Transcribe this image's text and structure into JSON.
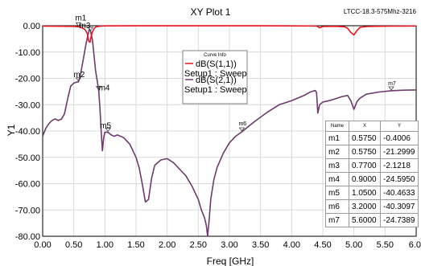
{
  "chart_data": {
    "type": "line",
    "title": "XY Plot 1",
    "subtitle": "LTCC-18.3-575Mhz-3216",
    "xlabel": "Freq [GHz]",
    "ylabel": "Y1",
    "xlim": [
      0,
      6
    ],
    "ylim": [
      -80,
      0
    ],
    "xticks": [
      "0.00",
      "0.50",
      "1.00",
      "1.50",
      "2.00",
      "2.50",
      "3.00",
      "3.50",
      "4.00",
      "4.50",
      "5.00",
      "5.50",
      "6.0"
    ],
    "yticks": [
      "0.00",
      "-10.00",
      "-20.00",
      "-30.00",
      "-40.00",
      "-50.00",
      "-60.00",
      "-70.00",
      "-80.00"
    ],
    "legend": {
      "header": "Curve Info",
      "placement": "top-center",
      "entries": [
        {
          "line1": "dB(S(1,1))",
          "line2": "Setup1 : Sweep",
          "color": "#e8131c"
        },
        {
          "line1": "dB(S(2,1))",
          "line2": "Setup1 : Sweep",
          "color": "#6e3a6e"
        }
      ]
    },
    "series": [
      {
        "key": "s21",
        "color": "#6e3a6e",
        "x": [
          0.0,
          0.05,
          0.1,
          0.15,
          0.2,
          0.25,
          0.3,
          0.35,
          0.4,
          0.45,
          0.5,
          0.55,
          0.575,
          0.6,
          0.65,
          0.7,
          0.75,
          0.77,
          0.8,
          0.85,
          0.88,
          0.9,
          0.92,
          0.94,
          0.96,
          0.98,
          1.0,
          1.05,
          1.1,
          1.15,
          1.2,
          1.3,
          1.4,
          1.5,
          1.55,
          1.6,
          1.65,
          1.7,
          1.75,
          1.8,
          1.9,
          2.0,
          2.1,
          2.2,
          2.3,
          2.4,
          2.5,
          2.55,
          2.6,
          2.63,
          2.65,
          2.67,
          2.7,
          2.75,
          2.8,
          2.9,
          3.0,
          3.1,
          3.2,
          3.4,
          3.6,
          3.8,
          4.0,
          4.2,
          4.3,
          4.35,
          4.38,
          4.4,
          4.42,
          4.45,
          4.5,
          4.6,
          4.7,
          4.8,
          4.9,
          4.95,
          5.0,
          5.05,
          5.1,
          5.2,
          5.4,
          5.6,
          5.8,
          6.0
        ],
        "y": [
          -42.0,
          -39.0,
          -37.2,
          -36.0,
          -35.4,
          -36.0,
          -35.5,
          -33.5,
          -28.0,
          -23.0,
          -21.8,
          -21.4,
          -21.3,
          -19.5,
          -13.0,
          -6.5,
          -1.3,
          -2.1,
          -5.5,
          -17.0,
          -21.5,
          -24.6,
          -31.0,
          -40.0,
          -47.5,
          -42.5,
          -40.5,
          -40.5,
          -41.5,
          -42.0,
          -41.5,
          -42.5,
          -45.0,
          -50.0,
          -54.0,
          -60.0,
          -67.0,
          -66.0,
          -58.0,
          -53.0,
          -51.0,
          -50.5,
          -52.0,
          -54.5,
          -57.0,
          -61.0,
          -66.0,
          -70.0,
          -73.0,
          -76.0,
          -80.0,
          -75.0,
          -66.0,
          -58.5,
          -54.0,
          -48.5,
          -44.5,
          -42.0,
          -40.3,
          -36.5,
          -33.0,
          -30.0,
          -28.5,
          -26.5,
          -25.2,
          -24.8,
          -24.6,
          -25.5,
          -33.2,
          -30.0,
          -29.0,
          -28.5,
          -27.8,
          -27.0,
          -26.5,
          -28.5,
          -31.8,
          -28.8,
          -27.5,
          -26.0,
          -25.2,
          -24.7,
          -24.5,
          -24.4
        ]
      },
      {
        "key": "s11",
        "color": "#e8131c",
        "x": [
          0.0,
          0.5,
          0.575,
          0.62,
          0.65,
          0.68,
          0.7,
          0.72,
          0.74,
          0.76,
          0.78,
          0.8,
          0.83,
          0.86,
          0.9,
          0.95,
          1.0,
          1.5,
          2.0,
          2.5,
          3.0,
          3.5,
          4.0,
          4.4,
          4.45,
          4.5,
          4.7,
          4.85,
          4.9,
          4.95,
          5.0,
          5.05,
          5.1,
          5.2,
          5.4,
          5.6,
          5.8,
          6.0
        ],
        "y": [
          -0.15,
          -0.25,
          -0.4,
          -0.7,
          -1.0,
          -1.5,
          -2.2,
          -3.2,
          -5.8,
          -6.3,
          -4.0,
          -2.3,
          -1.0,
          -0.4,
          -0.2,
          -0.1,
          -0.05,
          -0.03,
          -0.03,
          -0.03,
          -0.03,
          -0.04,
          -0.06,
          -0.1,
          -0.8,
          -0.3,
          -0.2,
          -0.4,
          -1.0,
          -2.5,
          -3.5,
          -1.8,
          -0.6,
          -0.3,
          -0.2,
          -0.15,
          -0.12,
          -0.1
        ]
      }
    ],
    "markers": [
      {
        "name": "m1",
        "x": 0.575,
        "y": -0.4006,
        "label_dx": -4,
        "label_dy": -8
      },
      {
        "name": "m2",
        "x": 0.575,
        "y": -21.2999,
        "label_dx": -6,
        "label_dy": -6
      },
      {
        "name": "m3",
        "x": 0.77,
        "y": -2.1218,
        "label_dx": -14,
        "label_dy": -4
      },
      {
        "name": "m4",
        "x": 0.9,
        "y": -24.595,
        "label_dx": 0,
        "label_dy": 0
      },
      {
        "name": "m5",
        "x": 1.05,
        "y": -40.4633,
        "label_dx": -10,
        "label_dy": -5
      },
      {
        "name": "m6",
        "x": 3.2,
        "y": -40.3097,
        "label_dx": -4,
        "label_dy": -8,
        "small": true
      },
      {
        "name": "m7",
        "x": 5.6,
        "y": -24.7389,
        "label_dx": -4,
        "label_dy": -7,
        "small": true
      }
    ],
    "marker_table": {
      "headers": [
        "Name",
        "X",
        "Y"
      ],
      "rows": [
        [
          "m1",
          "0.5750",
          "-0.4006"
        ],
        [
          "m2",
          "0.5750",
          "-21.2999"
        ],
        [
          "m3",
          "0.7700",
          "-2.1218"
        ],
        [
          "m4",
          "0.9000",
          "-24.5950"
        ],
        [
          "m5",
          "1.0500",
          "-40.4633"
        ],
        [
          "m6",
          "3.2000",
          "-40.3097"
        ],
        [
          "m7",
          "5.6000",
          "-24.7389"
        ]
      ]
    }
  }
}
